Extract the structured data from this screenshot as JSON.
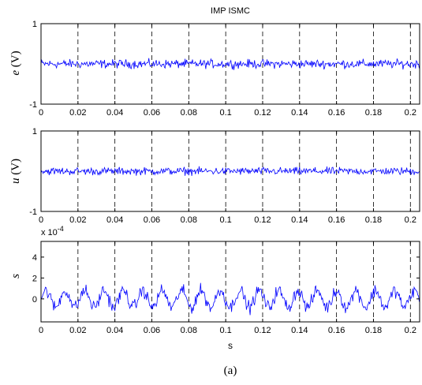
{
  "figure": {
    "caption": "(a)"
  },
  "chart_data": [
    {
      "type": "line",
      "title": "IMP ISMC",
      "ylabel_var": "e",
      "ylabel_unit": " (V)",
      "xlabel": "",
      "xlim": [
        0,
        0.205
      ],
      "ylim": [
        -1,
        1
      ],
      "xticks": [
        0,
        0.02,
        0.04,
        0.06,
        0.08,
        0.1,
        0.12,
        0.14,
        0.16,
        0.18,
        0.2
      ],
      "xtick_labels": [
        "0",
        "0.02",
        "0.04",
        "0.06",
        "0.08",
        "0.1",
        "0.12",
        "0.14",
        "0.16",
        "0.18",
        "0.2"
      ],
      "yticks": [
        -1,
        1
      ],
      "ytick_labels": [
        "-1",
        "1"
      ],
      "grid": "vertical-dashed",
      "exponent_label": "",
      "series": [
        {
          "color": "#0000ff",
          "signal": {
            "kind": "noise",
            "center": 0.0,
            "amplitude": 0.08,
            "sample_step": 0.0004
          }
        }
      ]
    },
    {
      "type": "line",
      "title": "",
      "ylabel_var": "u",
      "ylabel_unit": " (V)",
      "xlabel": "",
      "xlim": [
        0,
        0.205
      ],
      "ylim": [
        -1,
        1
      ],
      "xticks": [
        0,
        0.02,
        0.04,
        0.06,
        0.08,
        0.1,
        0.12,
        0.14,
        0.16,
        0.18,
        0.2
      ],
      "xtick_labels": [
        "0",
        "0.02",
        "0.04",
        "0.06",
        "0.08",
        "0.1",
        "0.12",
        "0.14",
        "0.16",
        "0.18",
        "0.2"
      ],
      "yticks": [
        -1,
        1
      ],
      "ytick_labels": [
        "-1",
        "1"
      ],
      "grid": "vertical-dashed",
      "exponent_label": "",
      "series": [
        {
          "color": "#0000ff",
          "signal": {
            "kind": "noise",
            "center": 0.0,
            "amplitude": 0.07,
            "sample_step": 0.0004
          }
        }
      ]
    },
    {
      "type": "line",
      "title": "",
      "ylabel_var": "s",
      "ylabel_unit": "",
      "xlabel": "s",
      "xlim": [
        0,
        0.205
      ],
      "ylim": [
        -2.2,
        5.5
      ],
      "xticks": [
        0,
        0.02,
        0.04,
        0.06,
        0.08,
        0.1,
        0.12,
        0.14,
        0.16,
        0.18,
        0.2
      ],
      "xtick_labels": [
        "0",
        "0.02",
        "0.04",
        "0.06",
        "0.08",
        "0.1",
        "0.12",
        "0.14",
        "0.16",
        "0.18",
        "0.2"
      ],
      "yticks": [
        0,
        2,
        4
      ],
      "ytick_labels": [
        "0",
        "2",
        "4"
      ],
      "grid": "vertical-dashed",
      "exponent_label": "x 10",
      "exponent_power": "-4",
      "series": [
        {
          "color": "#0000ff",
          "signal": {
            "kind": "oscillating-noise",
            "center": 0.0,
            "oscillation_amplitude": 0.8,
            "oscillation_period": 0.0105,
            "noise_amplitude": 0.45,
            "sample_step": 0.0004
          }
        }
      ]
    }
  ]
}
